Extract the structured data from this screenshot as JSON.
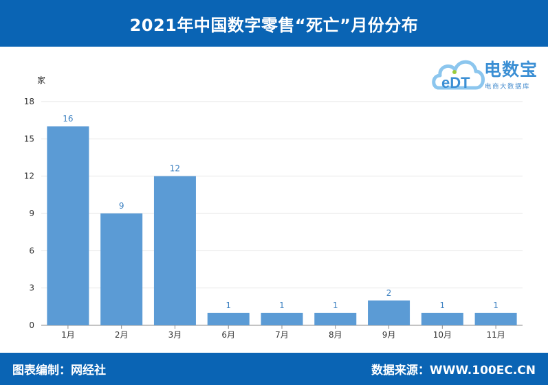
{
  "header": {
    "title": "2021年中国数字零售“死亡”月份分布"
  },
  "footer": {
    "left_text": "图表编制：网经社",
    "right_text": "数据来源：WWW.100EC.CN"
  },
  "logo": {
    "main_text": "电数宝",
    "sub_text": "电商大数据库",
    "mark_text": "eDT",
    "colors": {
      "cloud": "#8cc6ee",
      "text": "#3b8fd4",
      "accent": "#9ccc3c"
    }
  },
  "colors": {
    "brand": "#0a64b4",
    "bar": "#5b9bd5",
    "data_label": "#3a7fc0"
  },
  "chart_data": {
    "type": "bar",
    "title": "2021年中国数字零售“死亡”月份分布",
    "ylabel": "家",
    "xlabel": "",
    "categories": [
      "1月",
      "2月",
      "3月",
      "6月",
      "7月",
      "8月",
      "9月",
      "10月",
      "11月"
    ],
    "values": [
      16,
      9,
      12,
      1,
      1,
      1,
      2,
      1,
      1
    ],
    "ylim": [
      0,
      18
    ],
    "yticks": [
      0,
      3,
      6,
      9,
      12,
      15,
      18
    ],
    "grid": true,
    "data_labels": true
  }
}
